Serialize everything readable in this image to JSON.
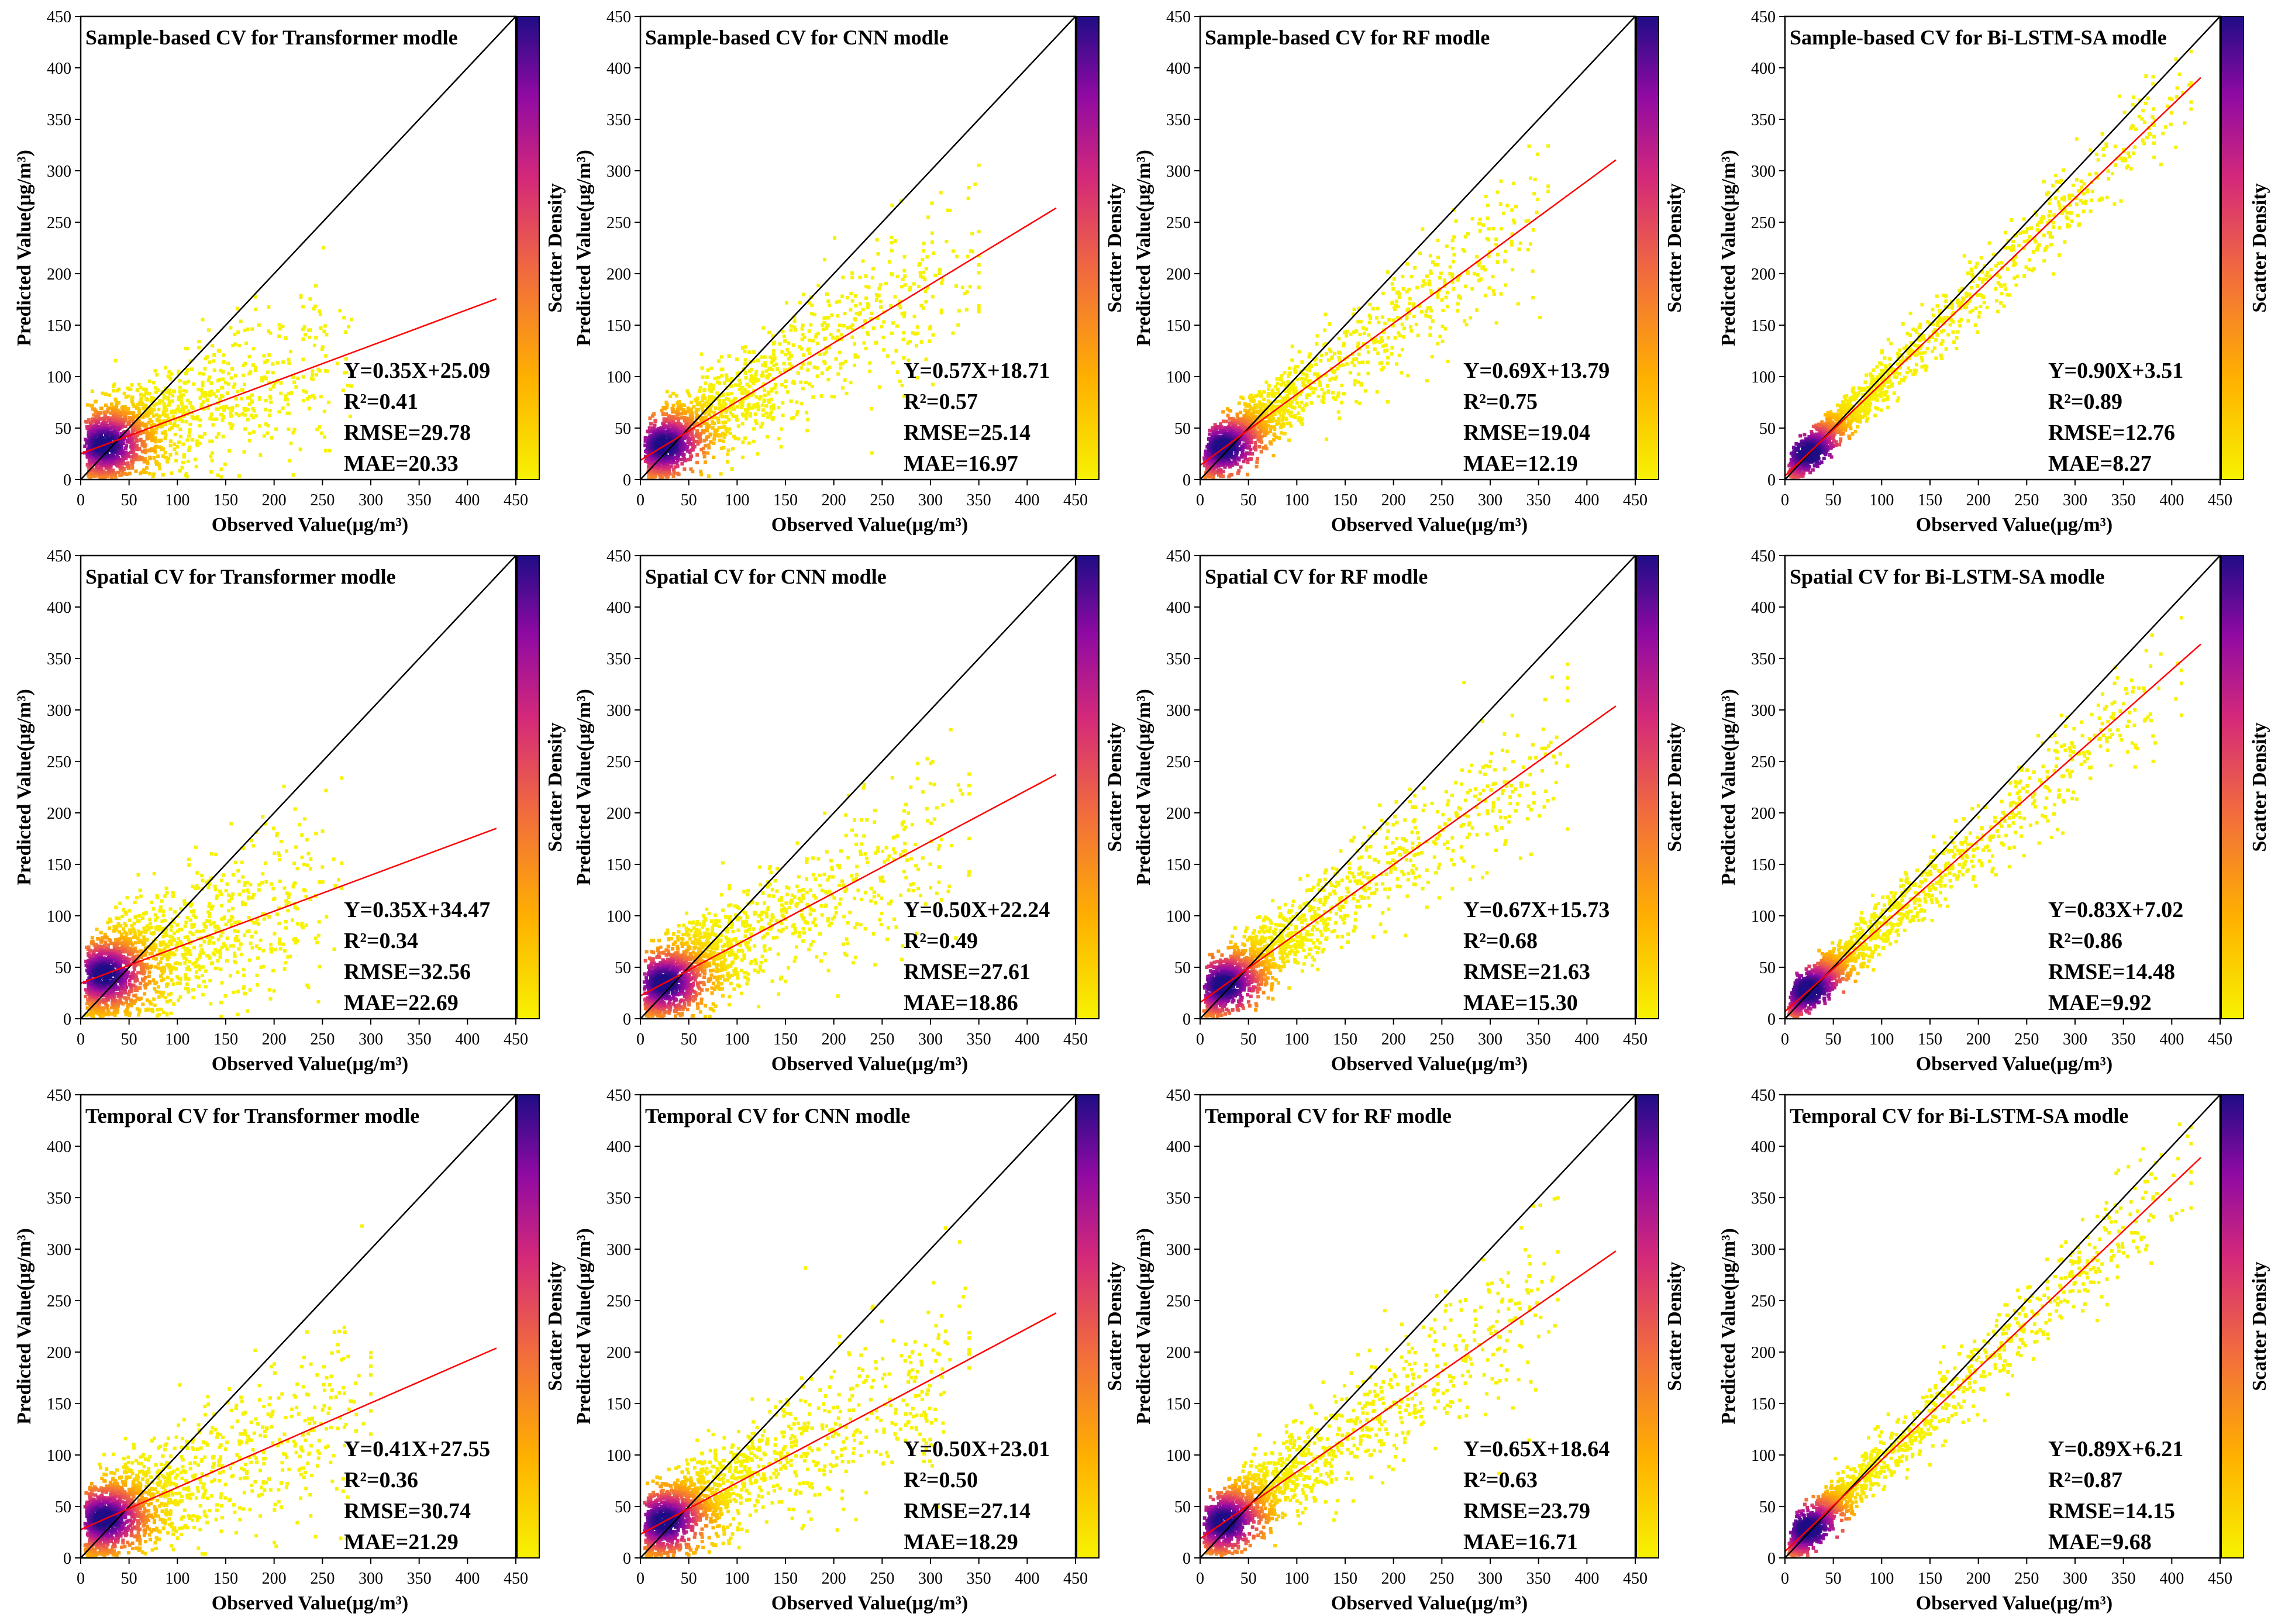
{
  "figure": {
    "rows": [
      {
        "name": "sample-based",
        "title_prefix": "Sample-based CV for"
      },
      {
        "name": "spatial",
        "title_prefix": "Spatial CV for"
      },
      {
        "name": "temporal",
        "title_prefix": "Temporal CV for"
      }
    ],
    "columns": [
      {
        "name": "transformer",
        "model": "Transformer modle"
      },
      {
        "name": "cnn",
        "model": "CNN modle"
      },
      {
        "name": "rf",
        "model": "RF modle"
      },
      {
        "name": "bilstm",
        "model": "Bi-LSTM-SA modle"
      }
    ],
    "colors": {
      "density_low": "#f7f200",
      "density_mid1": "#ffb000",
      "density_mid2": "#f16a3f",
      "density_mid3": "#d4297a",
      "density_mid4": "#8f0aa3",
      "density_high": "#1f0c86",
      "one_to_one": "#000000",
      "fit_line": "#ff0000"
    }
  },
  "chart_data": [
    {
      "type": "scatter",
      "title": "Sample-based CV for Transformer modle",
      "xlabel": "Observed Value(μg/m³)",
      "ylabel": "Predicted Value(μg/m³)",
      "colorbar_label": "Scatter Density",
      "xlim": [
        0,
        450
      ],
      "ylim": [
        0,
        450
      ],
      "ticks": [
        0,
        50,
        100,
        150,
        200,
        250,
        300,
        350,
        400,
        450
      ],
      "one_to_one": true,
      "fit": {
        "slope": 0.35,
        "intercept": 25.09,
        "x_end": 430
      },
      "stats": [
        "Y=0.35X+25.09",
        "R²=0.41",
        "RMSE=29.78",
        "MAE=20.33"
      ],
      "density": {
        "xmax": 260,
        "spread": 30.0,
        "seed": 11
      }
    },
    {
      "type": "scatter",
      "title": "Sample-based CV for CNN modle",
      "xlabel": "Observed Value(μg/m³)",
      "ylabel": "Predicted Value(μg/m³)",
      "colorbar_label": "Scatter Density",
      "xlim": [
        0,
        450
      ],
      "ylim": [
        0,
        450
      ],
      "ticks": [
        0,
        50,
        100,
        150,
        200,
        250,
        300,
        350,
        400,
        450
      ],
      "one_to_one": true,
      "fit": {
        "slope": 0.57,
        "intercept": 18.71,
        "x_end": 430
      },
      "stats": [
        "Y=0.57X+18.71",
        "R²=0.57",
        "RMSE=25.14",
        "MAE=16.97"
      ],
      "density": {
        "xmax": 330,
        "spread": 25.1,
        "seed": 12
      }
    },
    {
      "type": "scatter",
      "title": "Sample-based CV for RF modle",
      "xlabel": "Observed Value(μg/m³)",
      "ylabel": "Predicted Value(μg/m³)",
      "colorbar_label": "Scatter Density",
      "xlim": [
        0,
        450
      ],
      "ylim": [
        0,
        450
      ],
      "ticks": [
        0,
        50,
        100,
        150,
        200,
        250,
        300,
        350,
        400,
        450
      ],
      "one_to_one": true,
      "fit": {
        "slope": 0.69,
        "intercept": 13.79,
        "x_end": 430
      },
      "stats": [
        "Y=0.69X+13.79",
        "R²=0.75",
        "RMSE=19.04",
        "MAE=12.19"
      ],
      "density": {
        "xmax": 340,
        "spread": 19.0,
        "seed": 13
      }
    },
    {
      "type": "scatter",
      "title": "Sample-based CV for Bi-LSTM-SA modle",
      "xlabel": "Observed Value(μg/m³)",
      "ylabel": "Predicted Value(μg/m³)",
      "colorbar_label": "Scatter Density",
      "xlim": [
        0,
        450
      ],
      "ylim": [
        0,
        450
      ],
      "ticks": [
        0,
        50,
        100,
        150,
        200,
        250,
        300,
        350,
        400,
        450
      ],
      "one_to_one": true,
      "fit": {
        "slope": 0.9,
        "intercept": 3.51,
        "x_end": 430
      },
      "stats": [
        "Y=0.90X+3.51",
        "R²=0.89",
        "RMSE=12.76",
        "MAE=8.27"
      ],
      "density": {
        "xmax": 400,
        "spread": 12.8,
        "seed": 14
      }
    },
    {
      "type": "scatter",
      "title": "Spatial CV for Transformer modle",
      "xlabel": "Observed Value(μg/m³)",
      "ylabel": "Predicted Value(μg/m³)",
      "colorbar_label": "Scatter Density",
      "xlim": [
        0,
        450
      ],
      "ylim": [
        0,
        450
      ],
      "ticks": [
        0,
        50,
        100,
        150,
        200,
        250,
        300,
        350,
        400,
        450
      ],
      "one_to_one": true,
      "fit": {
        "slope": 0.35,
        "intercept": 34.47,
        "x_end": 430
      },
      "stats": [
        "Y=0.35X+34.47",
        "R²=0.34",
        "RMSE=32.56",
        "MAE=22.69"
      ],
      "density": {
        "xmax": 250,
        "spread": 32.6,
        "seed": 21
      }
    },
    {
      "type": "scatter",
      "title": "Spatial CV for CNN modle",
      "xlabel": "Observed Value(μg/m³)",
      "ylabel": "Predicted Value(μg/m³)",
      "colorbar_label": "Scatter Density",
      "xlim": [
        0,
        450
      ],
      "ylim": [
        0,
        450
      ],
      "ticks": [
        0,
        50,
        100,
        150,
        200,
        250,
        300,
        350,
        400,
        450
      ],
      "one_to_one": true,
      "fit": {
        "slope": 0.5,
        "intercept": 22.24,
        "x_end": 430
      },
      "stats": [
        "Y=0.50X+22.24",
        "R²=0.49",
        "RMSE=27.61",
        "MAE=18.86"
      ],
      "density": {
        "xmax": 320,
        "spread": 27.6,
        "seed": 22
      }
    },
    {
      "type": "scatter",
      "title": "Spatial CV for RF modle",
      "xlabel": "Observed Value(μg/m³)",
      "ylabel": "Predicted Value(μg/m³)",
      "colorbar_label": "Scatter Density",
      "xlim": [
        0,
        450
      ],
      "ylim": [
        0,
        450
      ],
      "ticks": [
        0,
        50,
        100,
        150,
        200,
        250,
        300,
        350,
        400,
        450
      ],
      "one_to_one": true,
      "fit": {
        "slope": 0.67,
        "intercept": 15.73,
        "x_end": 430
      },
      "stats": [
        "Y=0.67X+15.73",
        "R²=0.68",
        "RMSE=21.63",
        "MAE=15.30"
      ],
      "density": {
        "xmax": 360,
        "spread": 21.6,
        "seed": 23
      }
    },
    {
      "type": "scatter",
      "title": "Spatial CV for Bi-LSTM-SA modle",
      "xlabel": "Observed Value(μg/m³)",
      "ylabel": "Predicted Value(μg/m³)",
      "colorbar_label": "Scatter Density",
      "xlim": [
        0,
        450
      ],
      "ylim": [
        0,
        450
      ],
      "ticks": [
        0,
        50,
        100,
        150,
        200,
        250,
        300,
        350,
        400,
        450
      ],
      "one_to_one": true,
      "fit": {
        "slope": 0.83,
        "intercept": 7.02,
        "x_end": 430
      },
      "stats": [
        "Y=0.83X+7.02",
        "R²=0.86",
        "RMSE=14.48",
        "MAE=9.92"
      ],
      "density": {
        "xmax": 390,
        "spread": 14.5,
        "seed": 24
      }
    },
    {
      "type": "scatter",
      "title": "Temporal CV for Transformer modle",
      "xlabel": "Observed Value(μg/m³)",
      "ylabel": "Predicted Value(μg/m³)",
      "colorbar_label": "Scatter Density",
      "xlim": [
        0,
        450
      ],
      "ylim": [
        0,
        450
      ],
      "ticks": [
        0,
        50,
        100,
        150,
        200,
        250,
        300,
        350,
        400,
        450
      ],
      "one_to_one": true,
      "fit": {
        "slope": 0.41,
        "intercept": 27.55,
        "x_end": 430
      },
      "stats": [
        "Y=0.41X+27.55",
        "R²=0.36",
        "RMSE=30.74",
        "MAE=21.29"
      ],
      "density": {
        "xmax": 280,
        "spread": 30.7,
        "seed": 31
      }
    },
    {
      "type": "scatter",
      "title": "Temporal CV for CNN modle",
      "xlabel": "Observed Value(μg/m³)",
      "ylabel": "Predicted Value(μg/m³)",
      "colorbar_label": "Scatter Density",
      "xlim": [
        0,
        450
      ],
      "ylim": [
        0,
        450
      ],
      "ticks": [
        0,
        50,
        100,
        150,
        200,
        250,
        300,
        350,
        400,
        450
      ],
      "one_to_one": true,
      "fit": {
        "slope": 0.5,
        "intercept": 23.01,
        "x_end": 430
      },
      "stats": [
        "Y=0.50X+23.01",
        "R²=0.50",
        "RMSE=27.14",
        "MAE=18.29"
      ],
      "density": {
        "xmax": 320,
        "spread": 27.1,
        "seed": 32
      }
    },
    {
      "type": "scatter",
      "title": "Temporal CV for RF modle",
      "xlabel": "Observed Value(μg/m³)",
      "ylabel": "Predicted Value(μg/m³)",
      "colorbar_label": "Scatter Density",
      "xlim": [
        0,
        450
      ],
      "ylim": [
        0,
        450
      ],
      "ticks": [
        0,
        50,
        100,
        150,
        200,
        250,
        300,
        350,
        400,
        450
      ],
      "one_to_one": true,
      "fit": {
        "slope": 0.65,
        "intercept": 18.64,
        "x_end": 430
      },
      "stats": [
        "Y=0.65X+18.64",
        "R²=0.63",
        "RMSE=23.79",
        "MAE=16.71"
      ],
      "density": {
        "xmax": 350,
        "spread": 23.8,
        "seed": 33
      }
    },
    {
      "type": "scatter",
      "title": "Temporal CV for Bi-LSTM-SA modle",
      "xlabel": "Observed Value(μg/m³)",
      "ylabel": "Predicted Value(μg/m³)",
      "colorbar_label": "Scatter Density",
      "xlim": [
        0,
        450
      ],
      "ylim": [
        0,
        450
      ],
      "ticks": [
        0,
        50,
        100,
        150,
        200,
        250,
        300,
        350,
        400,
        450
      ],
      "one_to_one": true,
      "fit": {
        "slope": 0.89,
        "intercept": 6.21,
        "x_end": 430
      },
      "stats": [
        "Y=0.89X+6.21",
        "R²=0.87",
        "RMSE=14.15",
        "MAE=9.68"
      ],
      "density": {
        "xmax": 400,
        "spread": 14.2,
        "seed": 34
      }
    }
  ]
}
